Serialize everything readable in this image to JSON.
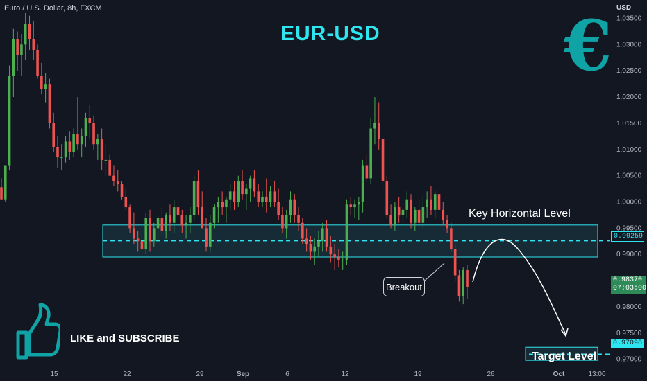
{
  "symbol": "Euro / U.S. Dollar, 8h, FXCM",
  "currency": "USD",
  "title": "EUR-USD",
  "euro_symbol": "€",
  "annotations": {
    "key_level": "Key Horizontal Level",
    "target_level": "Target Level",
    "breakout": "Breakout",
    "like": "LIKE and SUBSCRIBE"
  },
  "price_tags": {
    "key": "0.99259",
    "target": "0.97098",
    "current": "0.98370",
    "countdown": "07:03:00"
  },
  "colors": {
    "background": "#131722",
    "up": "#26a69a",
    "up_body": "#4caf50",
    "down": "#ef5350",
    "accent": "#2ee6ef",
    "euro": "#10a3a6"
  },
  "icons": [
    "euro-icon",
    "thumbs-up-icon"
  ],
  "chart_data": {
    "type": "candlestick",
    "title": "EUR-USD",
    "ylim": [
      0.9685,
      1.0385
    ],
    "y_ticks": [
      "1.03500",
      "1.03000",
      "1.02500",
      "1.02000",
      "1.01500",
      "1.01000",
      "1.00500",
      "1.00000",
      "0.99500",
      "0.99000",
      "0.98500",
      "0.98000",
      "0.97500",
      "0.97000"
    ],
    "x_ticks": [
      "15",
      "22",
      "29",
      "Sep",
      "6",
      "12",
      "19",
      "26",
      "Oct",
      "13:00"
    ],
    "key_level": 0.99259,
    "key_zone": [
      0.9895,
      0.9956
    ],
    "target_level": 0.97098,
    "target_zone": [
      0.9698,
      0.9723
    ],
    "current_price": 0.9837,
    "candles": [
      [
        1.0028,
        1.0045,
        1.0005,
        1.0005
      ],
      [
        1.0005,
        1.007,
        1.0,
        1.007
      ],
      [
        1.007,
        1.026,
        1.006,
        1.024
      ],
      [
        1.024,
        1.033,
        1.02,
        1.031
      ],
      [
        1.031,
        1.0325,
        1.025,
        1.028
      ],
      [
        1.028,
        1.032,
        1.024,
        1.03
      ],
      [
        1.03,
        1.036,
        1.027,
        1.034
      ],
      [
        1.034,
        1.0355,
        1.029,
        1.031
      ],
      [
        1.031,
        1.0345,
        1.027,
        1.029
      ],
      [
        1.029,
        1.03,
        1.0235,
        1.024
      ],
      [
        1.024,
        1.0265,
        1.0205,
        1.0215
      ],
      [
        1.0215,
        1.0245,
        1.019,
        1.0225
      ],
      [
        1.0225,
        1.0235,
        1.014,
        1.015
      ],
      [
        1.015,
        1.017,
        1.0095,
        1.0105
      ],
      [
        1.0105,
        1.0125,
        1.0065,
        1.0085
      ],
      [
        1.0085,
        1.011,
        1.006,
        1.0085
      ],
      [
        1.0085,
        1.0125,
        1.0075,
        1.0115
      ],
      [
        1.0115,
        1.0135,
        1.008,
        1.0095
      ],
      [
        1.0095,
        1.014,
        1.0085,
        1.013
      ],
      [
        1.013,
        1.02,
        1.01,
        1.011
      ],
      [
        1.011,
        1.014,
        1.0085,
        1.0125
      ],
      [
        1.0125,
        1.017,
        1.0105,
        1.016
      ],
      [
        1.016,
        1.0185,
        1.012,
        1.015
      ],
      [
        1.015,
        1.0165,
        1.01,
        1.011
      ],
      [
        1.011,
        1.013,
        1.008,
        1.012
      ],
      [
        1.012,
        1.014,
        1.006,
        1.008
      ],
      [
        1.008,
        1.011,
        1.005,
        1.008
      ],
      [
        1.008,
        1.009,
        1.005,
        1.005
      ],
      [
        1.005,
        1.007,
        1.003,
        1.004
      ],
      [
        1.004,
        1.006,
        1.002,
        1.0035
      ],
      [
        1.0035,
        1.004,
        1.0005,
        1.001
      ],
      [
        1.001,
        1.0025,
        0.9985,
        0.999
      ],
      [
        0.999,
        0.9995,
        0.994,
        0.995
      ],
      [
        0.995,
        0.998,
        0.992,
        0.993
      ],
      [
        0.993,
        0.9945,
        0.9905,
        0.9925
      ],
      [
        0.9925,
        0.9945,
        0.9905,
        0.991
      ],
      [
        0.991,
        0.998,
        0.99,
        0.997
      ],
      [
        0.997,
        0.9985,
        0.9905,
        0.9925
      ],
      [
        0.9925,
        0.996,
        0.9915,
        0.995
      ],
      [
        0.995,
        0.9975,
        0.9925,
        0.997
      ],
      [
        0.997,
        0.999,
        0.9935,
        0.9945
      ],
      [
        0.9945,
        0.998,
        0.993,
        0.9975
      ],
      [
        0.9975,
        0.9995,
        0.9945,
        0.996
      ],
      [
        0.996,
        1.0005,
        0.994,
        0.999
      ],
      [
        0.999,
        1.003,
        0.9965,
        0.9975
      ],
      [
        0.9975,
        0.9985,
        0.994,
        0.9955
      ],
      [
        0.9955,
        0.9975,
        0.993,
        0.996
      ],
      [
        0.996,
        0.999,
        0.994,
        0.9975
      ],
      [
        0.9975,
        1.005,
        0.9965,
        1.004
      ],
      [
        1.004,
        1.006,
        0.9975,
        0.999
      ],
      [
        0.999,
        1.002,
        0.995,
        0.995
      ],
      [
        0.995,
        0.997,
        0.9905,
        0.9915
      ],
      [
        0.9915,
        0.9975,
        0.9905,
        0.996
      ],
      [
        0.996,
        0.9995,
        0.995,
        0.999
      ],
      [
        0.999,
        1.001,
        0.996,
        1.0
      ],
      [
        1.0,
        1.002,
        0.9975,
        0.999
      ],
      [
        0.999,
        1.001,
        0.996,
        1.0005
      ],
      [
        1.0005,
        1.0035,
        0.9985,
        1.002
      ],
      [
        1.002,
        1.004,
        0.9985,
        1.0
      ],
      [
        1.0,
        1.005,
        0.999,
        1.004
      ],
      [
        1.004,
        1.006,
        1.0005,
        1.0015
      ],
      [
        1.0015,
        1.0035,
        0.9985,
        1.0025
      ],
      [
        1.0025,
        1.005,
        1.0,
        1.0045
      ],
      [
        1.0045,
        1.006,
        1.001,
        1.002
      ],
      [
        1.002,
        1.0035,
        0.999,
        1.0
      ],
      [
        1.0,
        1.002,
        0.999,
        1.001
      ],
      [
        1.001,
        1.0045,
        0.998,
        1.0
      ],
      [
        1.0,
        1.003,
        0.999,
        1.002
      ],
      [
        1.002,
        1.004,
        0.999,
        1.0
      ],
      [
        1.0,
        1.0025,
        0.9965,
        0.9975
      ],
      [
        0.9975,
        0.999,
        0.994,
        0.995
      ],
      [
        0.995,
        0.9985,
        0.993,
        0.9975
      ],
      [
        0.9975,
        1.002,
        0.996,
        1.0005
      ],
      [
        1.0005,
        1.0015,
        0.996,
        0.9975
      ],
      [
        0.9975,
        0.999,
        0.9945,
        0.996
      ],
      [
        0.996,
        0.997,
        0.992,
        0.993
      ],
      [
        0.993,
        0.995,
        0.9905,
        0.992
      ],
      [
        0.992,
        0.9935,
        0.989,
        0.9905
      ],
      [
        0.9905,
        0.993,
        0.988,
        0.9915
      ],
      [
        0.9915,
        0.9945,
        0.9895,
        0.9925
      ],
      [
        0.9925,
        0.996,
        0.9905,
        0.995
      ],
      [
        0.995,
        0.9965,
        0.9905,
        0.9915
      ],
      [
        0.9915,
        0.9935,
        0.9885,
        0.99
      ],
      [
        0.99,
        0.992,
        0.987,
        0.9895
      ],
      [
        0.9895,
        0.991,
        0.9875,
        0.989
      ],
      [
        0.989,
        0.9905,
        0.987,
        0.989
      ],
      [
        0.989,
        1.0005,
        0.988,
        0.9995
      ],
      [
        0.9995,
        1.001,
        0.9975,
        0.999
      ],
      [
        0.999,
        1.0005,
        0.997,
        0.9995
      ],
      [
        0.9995,
        1.001,
        0.9965,
        1.0
      ],
      [
        1.0,
        1.008,
        0.998,
        1.007
      ],
      [
        1.007,
        1.009,
        1.004,
        1.0045
      ],
      [
        1.0045,
        1.016,
        1.0035,
        1.014
      ],
      [
        1.014,
        1.02,
        1.011,
        1.015
      ],
      [
        1.015,
        1.019,
        1.01,
        1.012
      ],
      [
        1.012,
        1.0125,
        1.002,
        1.004
      ],
      [
        1.004,
        1.005,
        0.997,
        0.9975
      ],
      [
        0.9975,
        0.9995,
        0.995,
        0.9955
      ],
      [
        0.9955,
        1.0,
        0.9945,
        0.999
      ],
      [
        0.999,
        1.001,
        0.996,
        0.9975
      ],
      [
        0.9975,
        0.999,
        0.996,
        0.9985
      ],
      [
        0.9985,
        1.002,
        0.997,
        1.0005
      ],
      [
        1.0005,
        1.0015,
        0.995,
        0.996
      ],
      [
        0.996,
        0.999,
        0.9945,
        0.9985
      ],
      [
        0.9985,
        1.0005,
        0.995,
        0.996
      ],
      [
        0.996,
        1.001,
        0.995,
        0.999
      ],
      [
        0.999,
        1.002,
        0.997,
        1.0005
      ],
      [
        1.0005,
        1.003,
        0.9975,
        0.9985
      ],
      [
        0.9985,
        1.002,
        0.997,
        1.0015
      ],
      [
        1.0015,
        1.004,
        0.998,
        0.9985
      ],
      [
        0.9985,
        1.0,
        0.9955,
        0.9965
      ],
      [
        0.9965,
        0.9975,
        0.994,
        0.995
      ],
      [
        0.995,
        0.996,
        0.9905,
        0.991
      ],
      [
        0.991,
        0.992,
        0.985,
        0.986
      ],
      [
        0.986,
        0.987,
        0.981,
        0.982
      ],
      [
        0.982,
        0.9875,
        0.9805,
        0.987
      ],
      [
        0.987,
        0.988,
        0.9815,
        0.9837
      ]
    ]
  }
}
